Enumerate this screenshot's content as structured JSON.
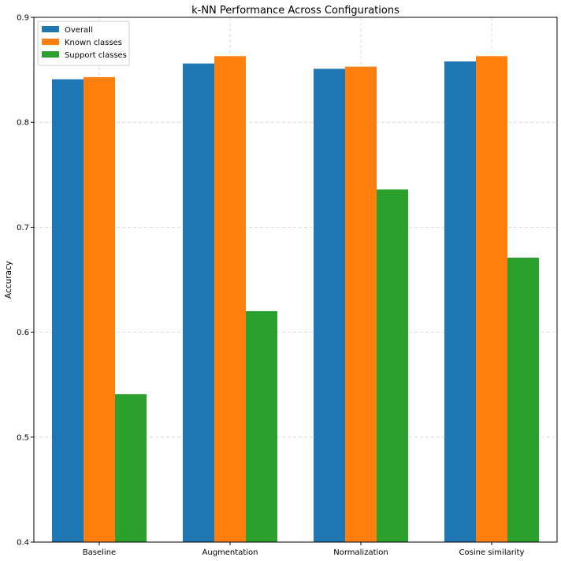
{
  "chart_data": {
    "type": "bar",
    "title": "k-NN Performance Across Configurations",
    "xlabel": "",
    "ylabel": "Accuracy",
    "ylim": [
      0.4,
      0.9
    ],
    "yticks": [
      "0.4",
      "0.5",
      "0.6",
      "0.7",
      "0.8",
      "0.9"
    ],
    "grid": true,
    "legend_position": "top-left",
    "categories": [
      "Baseline",
      "Augmentation",
      "Normalization",
      "Cosine similarity"
    ],
    "series": [
      {
        "name": "Overall",
        "color": "#1f77b4",
        "values": [
          0.841,
          0.856,
          0.851,
          0.858
        ]
      },
      {
        "name": "Known classes",
        "color": "#ff7f0e",
        "values": [
          0.843,
          0.863,
          0.853,
          0.863
        ]
      },
      {
        "name": "Support classes",
        "color": "#2ca02c",
        "values": [
          0.541,
          0.62,
          0.736,
          0.671
        ]
      }
    ]
  }
}
